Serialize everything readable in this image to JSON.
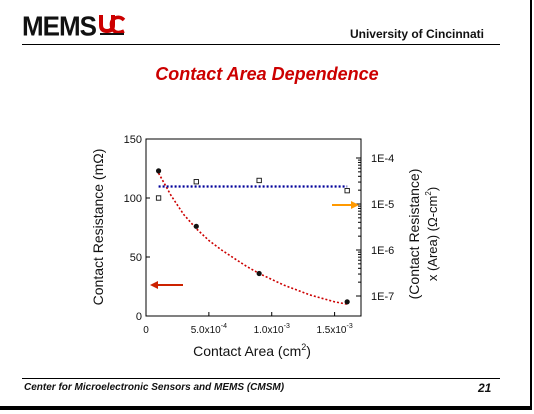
{
  "header": {
    "logo_text": "MEMS",
    "university": "University of Cincinnati"
  },
  "slide_title": "Contact Area Dependence",
  "footer": {
    "text": "Center for Microelectronic Sensors and MEMS (CMSM)",
    "page_number": "21"
  },
  "colors": {
    "title": "#cc0000",
    "fit_curve": "#cc0000",
    "flat_line": "#000099",
    "left_arrow": "#cc2200",
    "right_arrow": "#ff9900"
  },
  "chart_data": {
    "type": "scatter",
    "xlabel": "Contact Area (cm",
    "xlabel_sup": "2",
    "xlabel_end": ")",
    "ylabel": "Contact Resistance (mΩ)",
    "y2label_line1": "(Contact Resistance)",
    "y2label_line2": "x (Area) (Ω-cm",
    "y2label_sup": "2",
    "y2label_end": ")",
    "xlim": [
      0,
      0.00171
    ],
    "ylim": [
      0,
      150
    ],
    "y2_scale": "log",
    "y2lim": [
      1e-07,
      0.0001
    ],
    "grid": false,
    "x_ticks": [
      {
        "value": 0,
        "mantissa": "0",
        "exponent": ""
      },
      {
        "value": 0.0005,
        "mantissa": "5.0x10",
        "exponent": "-4"
      },
      {
        "value": 0.001,
        "mantissa": "1.0x10",
        "exponent": "-3"
      },
      {
        "value": 0.0015,
        "mantissa": "1.5x10",
        "exponent": "-3"
      }
    ],
    "y_ticks": [
      {
        "value": 0,
        "label": "0"
      },
      {
        "value": 50,
        "label": "50"
      },
      {
        "value": 100,
        "label": "100"
      },
      {
        "value": 150,
        "label": "150"
      }
    ],
    "y2_ticks": [
      {
        "value": 0.0001,
        "label": "1E-4"
      },
      {
        "value": 1e-05,
        "label": "1E-5"
      },
      {
        "value": 1e-06,
        "label": "1E-6"
      },
      {
        "value": 1e-07,
        "label": "1E-7"
      }
    ],
    "series": [
      {
        "marker": "filled-circle",
        "axis": "left",
        "x": [
          0.0001,
          0.0004,
          0.0009,
          0.0016
        ],
        "y": [
          123,
          76,
          36,
          12
        ]
      },
      {
        "marker": "open-square",
        "axis": "right",
        "x": [
          0.0001,
          0.0004,
          0.0009,
          0.0016
        ],
        "y": [
          1.35e-05,
          3.05e-05,
          3.25e-05,
          1.95e-05
        ]
      },
      {
        "style": "dotted-line",
        "axis": "left",
        "color": "#cc0000",
        "x": [
          0.0001,
          0.0002,
          0.0003,
          0.0004,
          0.0005,
          0.0006,
          0.0007,
          0.0008,
          0.0009,
          0.001,
          0.0011,
          0.0012,
          0.0013,
          0.0014,
          0.0015,
          0.0016
        ],
        "y": [
          121,
          102,
          86,
          74,
          64,
          56,
          49,
          42,
          36,
          31,
          26,
          22,
          18,
          15,
          12,
          10
        ]
      },
      {
        "style": "dotted-line",
        "axis": "right",
        "color": "#000099",
        "x": [
          0.0001,
          0.0016
        ],
        "y": [
          2.4e-05,
          2.4e-05
        ]
      }
    ]
  }
}
